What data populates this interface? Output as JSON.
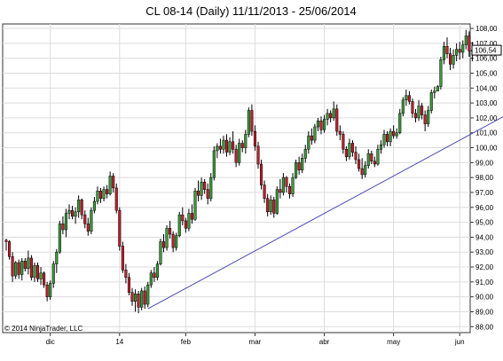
{
  "chart_data": {
    "type": "candlestick",
    "title": "CL 08-14 (Daily)  11/11/2013 - 25/06/2014",
    "copyright": "© 2014 NinjaTrader, LLC",
    "y_ticks": [
      "88,00",
      "89,00",
      "90,00",
      "91,00",
      "92,00",
      "93,00",
      "94,00",
      "95,00",
      "96,00",
      "97,00",
      "98,00",
      "99,00",
      "100,00",
      "101,00",
      "102,00",
      "103,00",
      "104,00",
      "105,00",
      "106,00",
      "107,00",
      "108,00"
    ],
    "ylim": [
      87.6,
      108.3
    ],
    "x_ticks": [
      {
        "label": "dic",
        "index": 14
      },
      {
        "label": "14",
        "index": 36
      },
      {
        "label": "feb",
        "index": 57
      },
      {
        "label": "mar",
        "index": 79
      },
      {
        "label": "abr",
        "index": 101
      },
      {
        "label": "may",
        "index": 123
      },
      {
        "label": "jun",
        "index": 144
      }
    ],
    "last_price_label": "106,54",
    "last_price": 106.54,
    "colors": {
      "up": "#3a9a3a",
      "down": "#c0202a",
      "trendline": "#4a4ab8"
    },
    "trendline": {
      "start": {
        "index": 45,
        "price": 89.2
      },
      "end": {
        "index": 165,
        "price": 102.9
      }
    },
    "candles": [
      [
        93.8,
        93.9,
        93.1,
        93.7
      ],
      [
        93.7,
        93.8,
        92.5,
        92.7
      ],
      [
        92.7,
        93.0,
        91.0,
        91.4
      ],
      [
        91.4,
        92.4,
        91.2,
        92.3
      ],
      [
        92.3,
        92.5,
        91.2,
        91.5
      ],
      [
        91.5,
        92.6,
        91.1,
        92.4
      ],
      [
        92.4,
        92.6,
        91.7,
        91.9
      ],
      [
        91.9,
        93.1,
        91.5,
        92.6
      ],
      [
        92.6,
        92.8,
        91.1,
        91.3
      ],
      [
        91.3,
        92.3,
        91.0,
        92.1
      ],
      [
        92.1,
        92.3,
        91.0,
        91.2
      ],
      [
        91.2,
        92.0,
        90.8,
        91.6
      ],
      [
        91.6,
        91.7,
        90.6,
        90.8
      ],
      [
        90.8,
        91.0,
        89.7,
        90.0
      ],
      [
        90.0,
        91.1,
        89.8,
        90.9
      ],
      [
        90.9,
        92.4,
        90.6,
        92.2
      ],
      [
        92.2,
        93.2,
        91.6,
        93.0
      ],
      [
        93.0,
        95.1,
        92.9,
        94.9
      ],
      [
        94.9,
        95.4,
        94.2,
        94.5
      ],
      [
        94.5,
        95.9,
        94.0,
        95.6
      ],
      [
        95.6,
        96.2,
        95.2,
        95.8
      ],
      [
        95.8,
        96.1,
        95.2,
        95.4
      ],
      [
        95.4,
        96.0,
        94.9,
        95.7
      ],
      [
        95.7,
        96.8,
        95.3,
        96.5
      ],
      [
        96.5,
        96.6,
        95.2,
        95.5
      ],
      [
        95.5,
        95.8,
        94.6,
        94.9
      ],
      [
        94.9,
        95.3,
        94.1,
        94.4
      ],
      [
        94.4,
        96.0,
        94.2,
        95.8
      ],
      [
        95.8,
        96.7,
        95.6,
        96.4
      ],
      [
        96.4,
        97.4,
        96.2,
        97.1
      ],
      [
        97.1,
        97.3,
        96.3,
        96.6
      ],
      [
        96.6,
        97.4,
        96.4,
        97.2
      ],
      [
        97.2,
        97.5,
        96.6,
        96.9
      ],
      [
        96.9,
        98.4,
        96.8,
        98.1
      ],
      [
        98.1,
        98.3,
        97.0,
        97.3
      ],
      [
        97.3,
        97.6,
        95.6,
        95.8
      ],
      [
        95.8,
        96.0,
        93.1,
        93.4
      ],
      [
        93.4,
        93.7,
        91.6,
        91.8
      ],
      [
        91.8,
        92.2,
        90.9,
        91.3
      ],
      [
        91.3,
        91.6,
        90.1,
        90.3
      ],
      [
        90.3,
        90.6,
        89.4,
        89.7
      ],
      [
        89.7,
        90.5,
        89.0,
        90.2
      ],
      [
        90.2,
        90.4,
        88.9,
        89.3
      ],
      [
        89.3,
        90.6,
        89.1,
        90.4
      ],
      [
        90.4,
        90.7,
        89.2,
        89.5
      ],
      [
        89.5,
        91.0,
        89.3,
        90.8
      ],
      [
        90.8,
        91.8,
        90.6,
        91.6
      ],
      [
        91.6,
        92.0,
        91.0,
        91.3
      ],
      [
        91.3,
        92.4,
        91.1,
        92.2
      ],
      [
        92.2,
        93.9,
        92.1,
        93.7
      ],
      [
        93.7,
        94.2,
        93.0,
        93.3
      ],
      [
        93.3,
        94.8,
        93.1,
        94.6
      ],
      [
        94.6,
        95.1,
        93.9,
        94.2
      ],
      [
        94.2,
        94.4,
        93.0,
        93.3
      ],
      [
        93.3,
        94.3,
        93.1,
        94.1
      ],
      [
        94.1,
        95.7,
        94.0,
        95.5
      ],
      [
        95.5,
        96.0,
        94.8,
        95.1
      ],
      [
        95.1,
        95.3,
        94.3,
        94.6
      ],
      [
        94.6,
        95.9,
        94.4,
        95.6
      ],
      [
        95.6,
        96.2,
        94.9,
        95.2
      ],
      [
        95.2,
        97.3,
        95.1,
        97.1
      ],
      [
        97.1,
        97.8,
        96.4,
        96.8
      ],
      [
        96.8,
        98.0,
        96.5,
        97.7
      ],
      [
        97.7,
        97.9,
        96.9,
        97.2
      ],
      [
        97.2,
        97.6,
        96.2,
        96.6
      ],
      [
        96.6,
        98.3,
        96.4,
        98.0
      ],
      [
        98.0,
        100.1,
        97.8,
        99.8
      ],
      [
        99.8,
        100.3,
        99.3,
        100.1
      ],
      [
        100.1,
        100.6,
        99.6,
        99.9
      ],
      [
        99.9,
        100.8,
        99.6,
        100.5
      ],
      [
        100.5,
        100.9,
        99.4,
        99.7
      ],
      [
        99.7,
        100.7,
        99.5,
        100.4
      ],
      [
        100.4,
        101.1,
        99.6,
        99.9
      ],
      [
        99.9,
        100.2,
        98.7,
        99.0
      ],
      [
        99.0,
        100.6,
        98.8,
        100.3
      ],
      [
        100.3,
        100.5,
        99.7,
        100.0
      ],
      [
        100.0,
        101.2,
        99.6,
        100.9
      ],
      [
        100.9,
        102.7,
        100.7,
        102.5
      ],
      [
        102.5,
        102.9,
        100.8,
        101.1
      ],
      [
        101.1,
        101.5,
        99.8,
        100.1
      ],
      [
        100.1,
        100.4,
        98.6,
        98.9
      ],
      [
        98.9,
        99.2,
        97.2,
        97.5
      ],
      [
        97.5,
        97.8,
        96.3,
        96.6
      ],
      [
        96.6,
        96.9,
        95.4,
        95.7
      ],
      [
        95.7,
        96.8,
        95.5,
        96.5
      ],
      [
        96.5,
        96.7,
        95.3,
        95.6
      ],
      [
        95.6,
        97.4,
        95.5,
        97.2
      ],
      [
        97.2,
        97.9,
        96.6,
        97.0
      ],
      [
        97.0,
        98.3,
        96.8,
        98.0
      ],
      [
        98.0,
        98.1,
        97.0,
        97.4
      ],
      [
        97.4,
        97.6,
        96.6,
        96.9
      ],
      [
        96.9,
        98.3,
        96.7,
        98.0
      ],
      [
        98.0,
        99.2,
        97.9,
        99.0
      ],
      [
        99.0,
        99.4,
        98.2,
        98.5
      ],
      [
        98.5,
        99.6,
        98.3,
        99.3
      ],
      [
        99.3,
        100.2,
        99.0,
        99.9
      ],
      [
        99.9,
        101.1,
        99.6,
        100.8
      ],
      [
        100.8,
        101.3,
        100.2,
        100.5
      ],
      [
        100.5,
        101.6,
        100.3,
        101.4
      ],
      [
        101.4,
        102.0,
        101.1,
        101.8
      ],
      [
        101.8,
        102.1,
        100.9,
        101.2
      ],
      [
        101.2,
        102.2,
        101.0,
        101.9
      ],
      [
        101.9,
        102.6,
        101.5,
        102.3
      ],
      [
        102.3,
        102.5,
        101.7,
        102.0
      ],
      [
        102.0,
        103.1,
        101.8,
        102.6
      ],
      [
        102.6,
        102.9,
        100.8,
        101.1
      ],
      [
        101.1,
        101.5,
        100.5,
        100.9
      ],
      [
        100.9,
        101.1,
        99.6,
        99.9
      ],
      [
        99.9,
        100.1,
        99.1,
        99.4
      ],
      [
        99.4,
        100.6,
        99.2,
        100.3
      ],
      [
        100.3,
        100.5,
        99.4,
        99.7
      ],
      [
        99.7,
        100.1,
        98.9,
        99.2
      ],
      [
        99.2,
        99.6,
        98.4,
        98.6
      ],
      [
        98.6,
        99.3,
        97.9,
        98.2
      ],
      [
        98.2,
        99.1,
        98.0,
        98.8
      ],
      [
        98.8,
        99.9,
        98.6,
        99.6
      ],
      [
        99.6,
        99.8,
        98.9,
        99.1
      ],
      [
        99.1,
        99.4,
        98.7,
        98.9
      ],
      [
        98.9,
        100.2,
        98.8,
        99.9
      ],
      [
        99.9,
        100.5,
        99.6,
        100.2
      ],
      [
        100.2,
        101.2,
        100.0,
        100.9
      ],
      [
        100.9,
        101.1,
        100.1,
        100.4
      ],
      [
        100.4,
        101.3,
        100.1,
        101.1
      ],
      [
        101.1,
        101.5,
        100.6,
        100.8
      ],
      [
        100.8,
        101.3,
        100.6,
        101.0
      ],
      [
        101.0,
        102.6,
        100.9,
        102.3
      ],
      [
        102.3,
        103.4,
        102.1,
        103.2
      ],
      [
        103.2,
        103.9,
        102.8,
        103.5
      ],
      [
        103.5,
        103.8,
        102.9,
        103.1
      ],
      [
        103.1,
        103.3,
        102.0,
        102.3
      ],
      [
        102.3,
        102.6,
        101.7,
        102.0
      ],
      [
        102.0,
        103.2,
        101.8,
        102.8
      ],
      [
        102.8,
        103.0,
        101.9,
        102.2
      ],
      [
        102.2,
        102.5,
        101.1,
        101.6
      ],
      [
        101.6,
        102.8,
        101.4,
        102.5
      ],
      [
        102.5,
        103.9,
        102.3,
        103.7
      ],
      [
        103.7,
        104.1,
        103.3,
        103.8
      ],
      [
        103.8,
        104.2,
        104.0,
        104.1
      ],
      [
        104.1,
        106.1,
        103.9,
        105.9
      ],
      [
        105.9,
        107.1,
        105.6,
        106.8
      ],
      [
        106.8,
        107.4,
        106.0,
        106.3
      ],
      [
        106.3,
        106.7,
        105.2,
        105.6
      ],
      [
        105.6,
        106.6,
        105.3,
        106.2
      ],
      [
        106.2,
        107.0,
        105.8,
        106.6
      ],
      [
        106.6,
        107.1,
        105.9,
        106.4
      ],
      [
        106.4,
        107.2,
        106.0,
        106.9
      ],
      [
        106.9,
        107.9,
        106.6,
        107.5
      ],
      [
        107.5,
        107.8,
        106.1,
        106.5
      ],
      [
        106.5,
        107.1,
        105.8,
        106.54
      ]
    ]
  }
}
